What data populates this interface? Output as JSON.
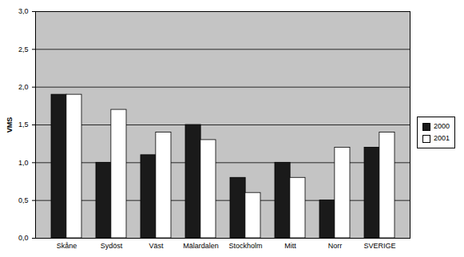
{
  "chart_data": {
    "type": "bar",
    "y_label": "VMS",
    "categories": [
      "Skåne",
      "Sydöst",
      "Väst",
      "Mälardalen",
      "Stockholm",
      "Mitt",
      "Norr",
      "SVERIGE"
    ],
    "series": [
      {
        "name": "2000",
        "color": "#1a1a1a",
        "values": [
          1.9,
          1.0,
          1.1,
          1.5,
          0.8,
          1.0,
          0.5,
          1.2
        ]
      },
      {
        "name": "2001",
        "color": "#ffffff",
        "values": [
          1.9,
          1.7,
          1.4,
          1.3,
          0.6,
          0.8,
          1.2,
          1.4
        ]
      }
    ],
    "ylim": [
      0,
      3
    ],
    "yticks": [
      {
        "value": 0,
        "label": "0,0"
      },
      {
        "value": 0.5,
        "label": "0,5"
      },
      {
        "value": 1,
        "label": "1,0"
      },
      {
        "value": 1.5,
        "label": "1,5"
      },
      {
        "value": 2,
        "label": "2,0"
      },
      {
        "value": 2.5,
        "label": "2,5"
      },
      {
        "value": 3,
        "label": "3,0"
      }
    ],
    "grid": true,
    "legend": "right"
  }
}
